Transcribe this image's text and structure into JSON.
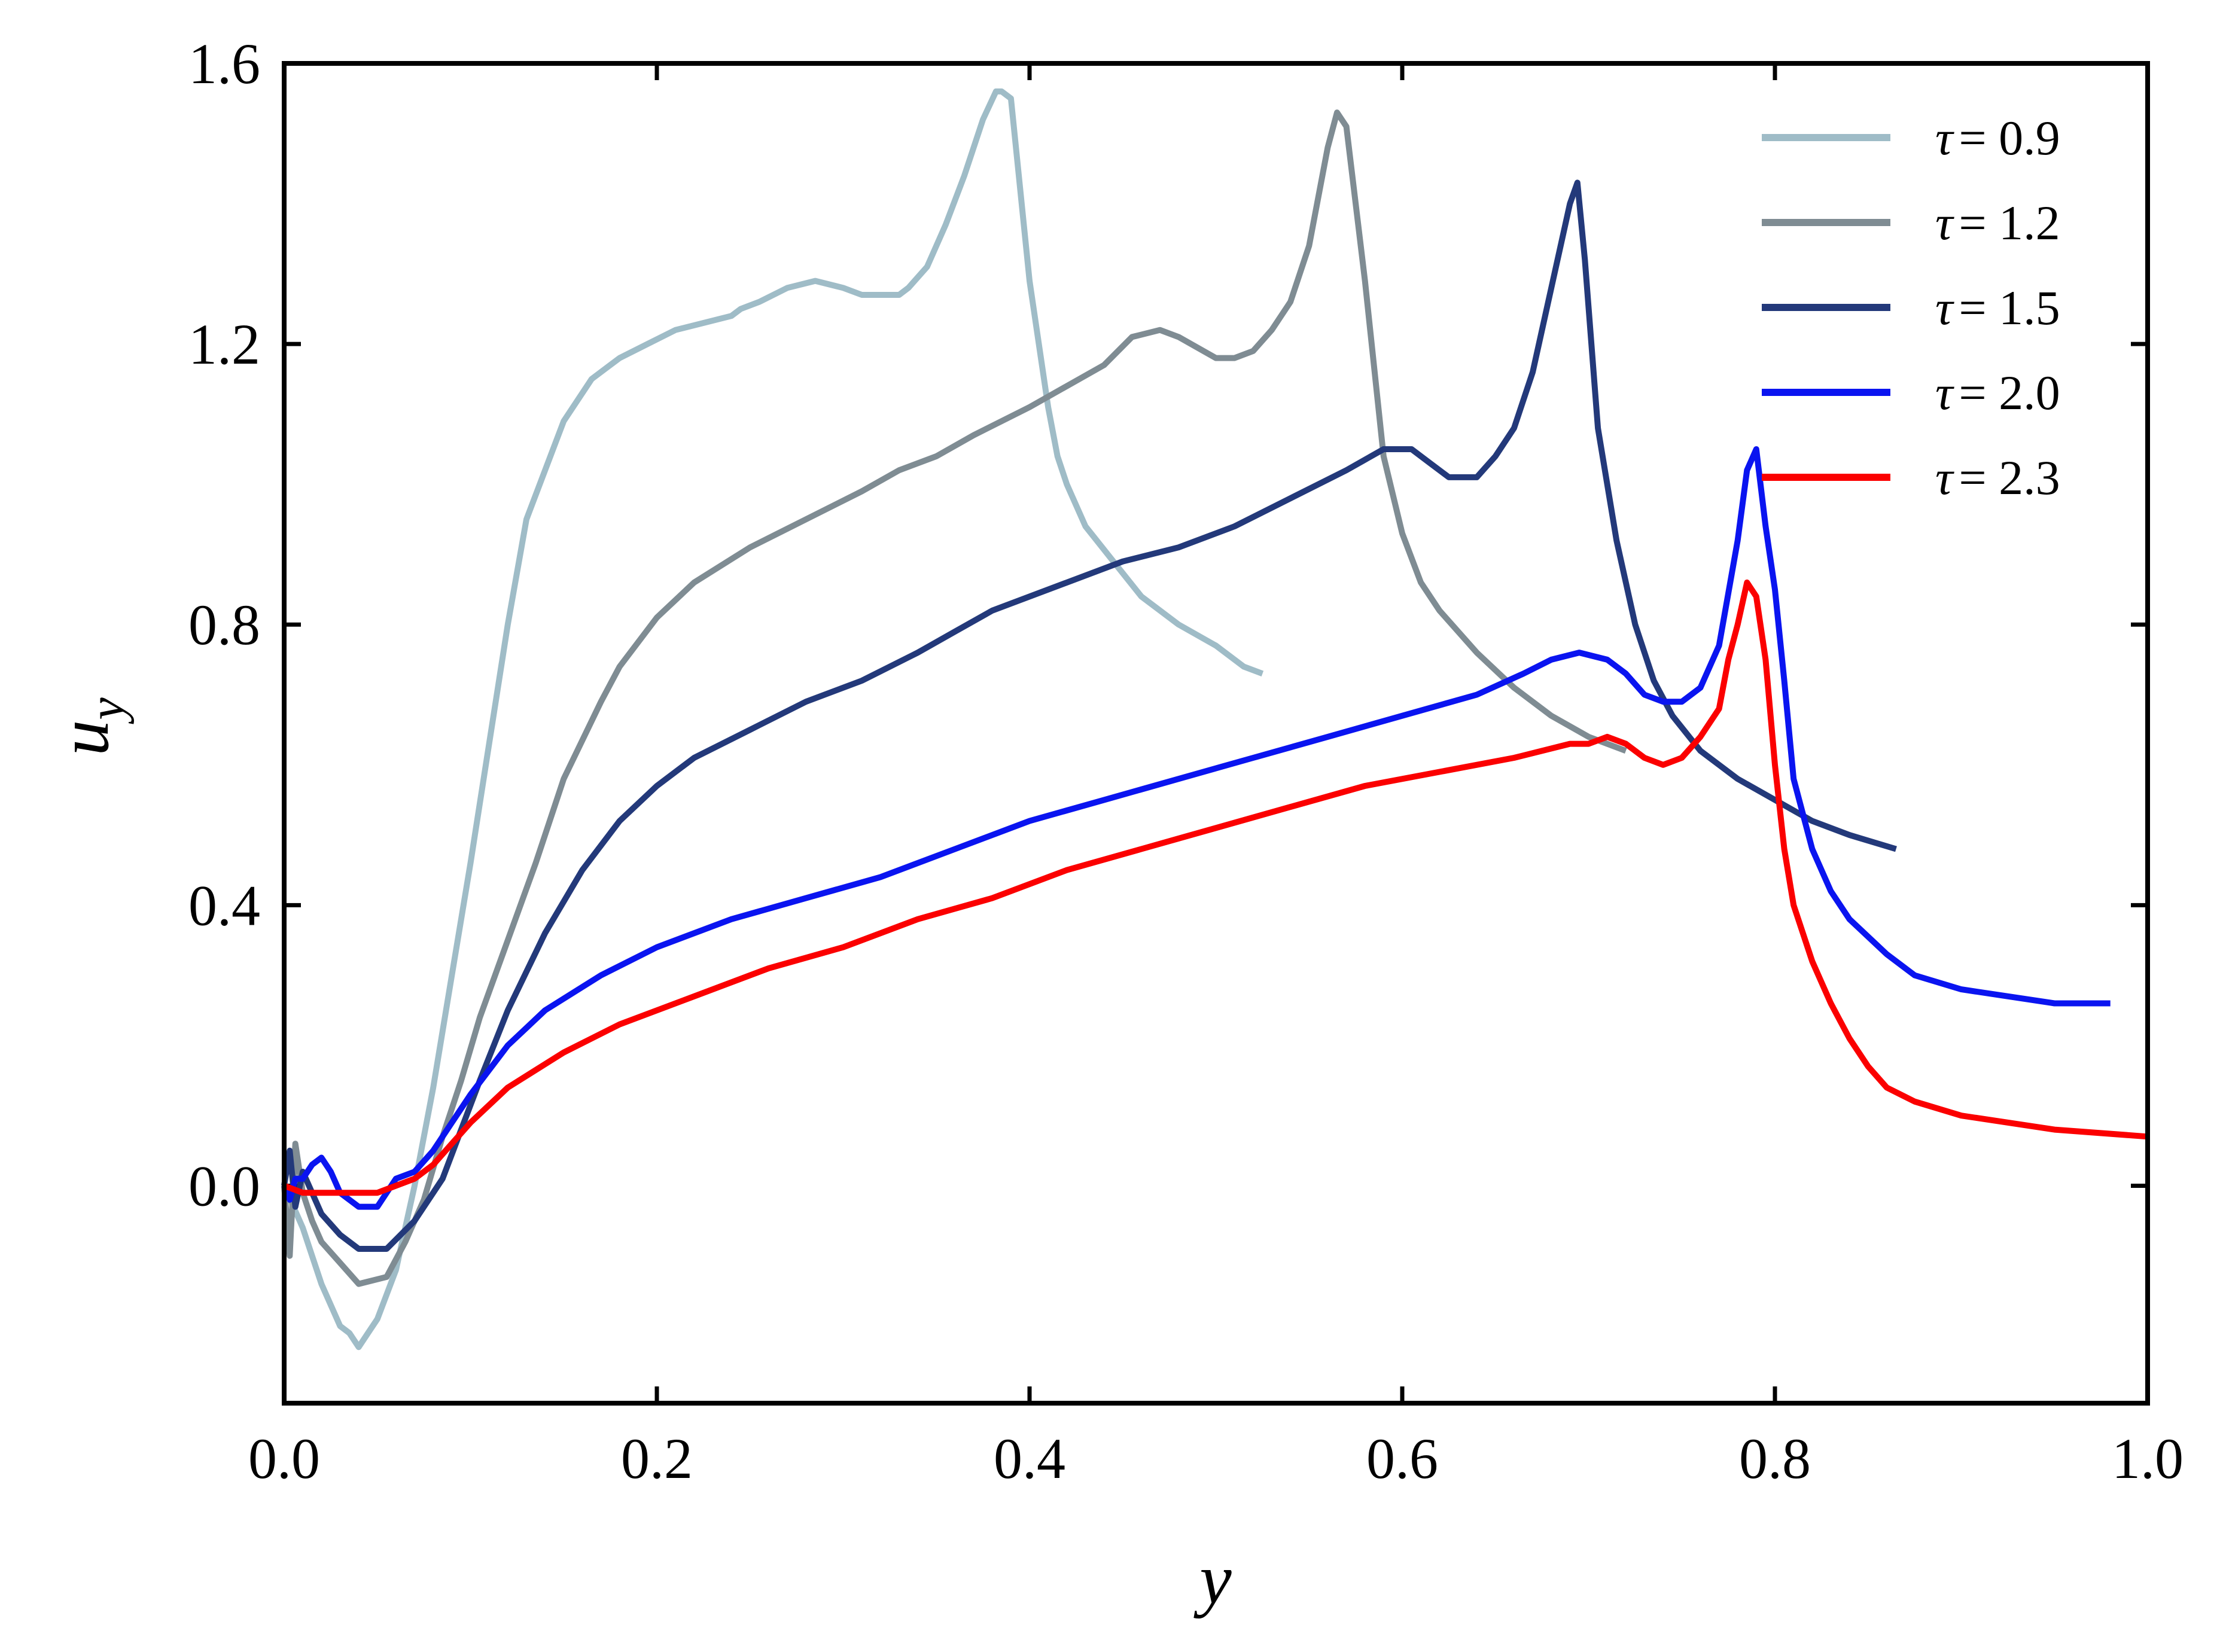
{
  "chart_data": {
    "type": "line",
    "title": "",
    "xlabel": "y",
    "ylabel": "u",
    "ylabel_sub": "y",
    "xlim": [
      0.0,
      1.0
    ],
    "ylim": [
      -0.31,
      1.6
    ],
    "xticks": [
      0.0,
      0.2,
      0.4,
      0.6,
      0.8,
      1.0
    ],
    "xtick_labels": [
      "0.0",
      "0.2",
      "0.4",
      "0.6",
      "0.8",
      "1.0"
    ],
    "yticks": [
      0.0,
      0.4,
      0.8,
      1.2,
      1.6
    ],
    "ytick_labels": [
      "0.0",
      "0.4",
      "0.8",
      "1.2",
      "1.6"
    ],
    "grid": false,
    "legend_position": "top-right",
    "series": [
      {
        "name": "τ = 0.9",
        "symbol": "τ",
        "value_text": "= 0.9",
        "color": "#9fbcc7",
        "x": [
          0.0,
          0.005,
          0.01,
          0.02,
          0.03,
          0.035,
          0.04,
          0.045,
          0.05,
          0.06,
          0.07,
          0.08,
          0.09,
          0.1,
          0.11,
          0.12,
          0.13,
          0.15,
          0.165,
          0.18,
          0.195,
          0.21,
          0.24,
          0.245,
          0.255,
          0.27,
          0.285,
          0.3,
          0.31,
          0.32,
          0.33,
          0.335,
          0.345,
          0.355,
          0.365,
          0.375,
          0.382,
          0.385,
          0.39,
          0.4,
          0.41,
          0.415,
          0.42,
          0.43,
          0.445,
          0.46,
          0.48,
          0.5,
          0.515,
          0.525
        ],
        "y": [
          0.0,
          -0.03,
          -0.06,
          -0.14,
          -0.2,
          -0.21,
          -0.23,
          -0.21,
          -0.19,
          -0.12,
          0.0,
          0.14,
          0.3,
          0.46,
          0.63,
          0.8,
          0.95,
          1.09,
          1.15,
          1.18,
          1.2,
          1.22,
          1.24,
          1.25,
          1.26,
          1.28,
          1.29,
          1.28,
          1.27,
          1.27,
          1.27,
          1.28,
          1.31,
          1.37,
          1.44,
          1.52,
          1.56,
          1.56,
          1.55,
          1.29,
          1.11,
          1.04,
          1.0,
          0.94,
          0.89,
          0.84,
          0.8,
          0.77,
          0.74,
          0.73
        ]
      },
      {
        "name": "τ = 1.2",
        "symbol": "τ",
        "value_text": "= 1.2",
        "color": "#7f8c93",
        "x": [
          0.0,
          0.003,
          0.006,
          0.01,
          0.015,
          0.02,
          0.03,
          0.04,
          0.055,
          0.065,
          0.075,
          0.085,
          0.095,
          0.105,
          0.12,
          0.135,
          0.15,
          0.17,
          0.18,
          0.2,
          0.22,
          0.25,
          0.28,
          0.31,
          0.33,
          0.35,
          0.37,
          0.4,
          0.42,
          0.44,
          0.455,
          0.47,
          0.48,
          0.5,
          0.51,
          0.52,
          0.53,
          0.54,
          0.55,
          0.56,
          0.565,
          0.57,
          0.58,
          0.59,
          0.6,
          0.61,
          0.62,
          0.64,
          0.66,
          0.68,
          0.7,
          0.72
        ],
        "y": [
          0.0,
          -0.1,
          0.06,
          -0.01,
          -0.05,
          -0.08,
          -0.11,
          -0.14,
          -0.13,
          -0.08,
          -0.02,
          0.07,
          0.15,
          0.24,
          0.35,
          0.46,
          0.58,
          0.69,
          0.74,
          0.81,
          0.86,
          0.91,
          0.95,
          0.99,
          1.02,
          1.04,
          1.07,
          1.11,
          1.14,
          1.17,
          1.21,
          1.22,
          1.21,
          1.18,
          1.18,
          1.19,
          1.22,
          1.26,
          1.34,
          1.48,
          1.53,
          1.51,
          1.29,
          1.04,
          0.93,
          0.86,
          0.82,
          0.76,
          0.71,
          0.67,
          0.64,
          0.62
        ]
      },
      {
        "name": "τ = 1.5",
        "symbol": "τ",
        "value_text": "= 1.5",
        "color": "#23397a",
        "x": [
          0.0,
          0.003,
          0.006,
          0.01,
          0.02,
          0.03,
          0.04,
          0.055,
          0.07,
          0.085,
          0.095,
          0.105,
          0.12,
          0.14,
          0.16,
          0.18,
          0.2,
          0.22,
          0.25,
          0.28,
          0.31,
          0.34,
          0.36,
          0.38,
          0.42,
          0.45,
          0.48,
          0.51,
          0.54,
          0.57,
          0.59,
          0.605,
          0.615,
          0.625,
          0.64,
          0.65,
          0.66,
          0.67,
          0.68,
          0.69,
          0.694,
          0.698,
          0.705,
          0.715,
          0.725,
          0.735,
          0.745,
          0.76,
          0.78,
          0.8,
          0.82,
          0.84,
          0.865
        ],
        "y": [
          0.0,
          0.05,
          -0.03,
          0.02,
          -0.04,
          -0.07,
          -0.09,
          -0.09,
          -0.05,
          0.01,
          0.08,
          0.15,
          0.25,
          0.36,
          0.45,
          0.52,
          0.57,
          0.61,
          0.65,
          0.69,
          0.72,
          0.76,
          0.79,
          0.82,
          0.86,
          0.89,
          0.91,
          0.94,
          0.98,
          1.02,
          1.05,
          1.05,
          1.03,
          1.01,
          1.01,
          1.04,
          1.08,
          1.16,
          1.28,
          1.4,
          1.43,
          1.32,
          1.08,
          0.92,
          0.8,
          0.72,
          0.67,
          0.62,
          0.58,
          0.55,
          0.52,
          0.5,
          0.48
        ]
      },
      {
        "name": "τ = 2.0",
        "symbol": "τ",
        "value_text": "= 2.0",
        "color": "#0a14f0",
        "x": [
          0.0,
          0.003,
          0.006,
          0.01,
          0.015,
          0.02,
          0.025,
          0.03,
          0.04,
          0.05,
          0.055,
          0.06,
          0.07,
          0.08,
          0.09,
          0.1,
          0.12,
          0.14,
          0.17,
          0.2,
          0.24,
          0.28,
          0.32,
          0.36,
          0.4,
          0.44,
          0.48,
          0.52,
          0.56,
          0.6,
          0.64,
          0.665,
          0.68,
          0.695,
          0.71,
          0.72,
          0.73,
          0.74,
          0.75,
          0.76,
          0.77,
          0.78,
          0.785,
          0.79,
          0.795,
          0.8,
          0.805,
          0.81,
          0.82,
          0.83,
          0.84,
          0.86,
          0.875,
          0.9,
          0.95,
          0.98
        ],
        "y": [
          0.0,
          -0.02,
          0.01,
          0.01,
          0.03,
          0.04,
          0.02,
          -0.01,
          -0.03,
          -0.03,
          -0.01,
          0.01,
          0.02,
          0.05,
          0.09,
          0.13,
          0.2,
          0.25,
          0.3,
          0.34,
          0.38,
          0.41,
          0.44,
          0.48,
          0.52,
          0.55,
          0.58,
          0.61,
          0.64,
          0.67,
          0.7,
          0.73,
          0.75,
          0.76,
          0.75,
          0.73,
          0.7,
          0.69,
          0.69,
          0.71,
          0.77,
          0.92,
          1.02,
          1.05,
          0.94,
          0.85,
          0.72,
          0.58,
          0.48,
          0.42,
          0.38,
          0.33,
          0.3,
          0.28,
          0.26,
          0.26
        ]
      },
      {
        "name": "τ = 2.3",
        "symbol": "τ",
        "value_text": "= 2.3",
        "color": "#fb0000",
        "x": [
          0.0,
          0.01,
          0.02,
          0.04,
          0.05,
          0.06,
          0.07,
          0.08,
          0.09,
          0.1,
          0.12,
          0.15,
          0.18,
          0.22,
          0.26,
          0.3,
          0.34,
          0.38,
          0.42,
          0.46,
          0.5,
          0.54,
          0.58,
          0.62,
          0.66,
          0.69,
          0.7,
          0.71,
          0.72,
          0.73,
          0.74,
          0.75,
          0.76,
          0.77,
          0.775,
          0.78,
          0.785,
          0.79,
          0.795,
          0.8,
          0.805,
          0.81,
          0.82,
          0.83,
          0.84,
          0.85,
          0.86,
          0.875,
          0.9,
          0.95,
          1.0
        ],
        "y": [
          0.0,
          -0.01,
          -0.01,
          -0.01,
          -0.01,
          0.0,
          0.01,
          0.03,
          0.06,
          0.09,
          0.14,
          0.19,
          0.23,
          0.27,
          0.31,
          0.34,
          0.38,
          0.41,
          0.45,
          0.48,
          0.51,
          0.54,
          0.57,
          0.59,
          0.61,
          0.63,
          0.63,
          0.64,
          0.63,
          0.61,
          0.6,
          0.61,
          0.64,
          0.68,
          0.75,
          0.8,
          0.86,
          0.84,
          0.75,
          0.6,
          0.48,
          0.4,
          0.32,
          0.26,
          0.21,
          0.17,
          0.14,
          0.12,
          0.1,
          0.08,
          0.07
        ]
      }
    ]
  }
}
